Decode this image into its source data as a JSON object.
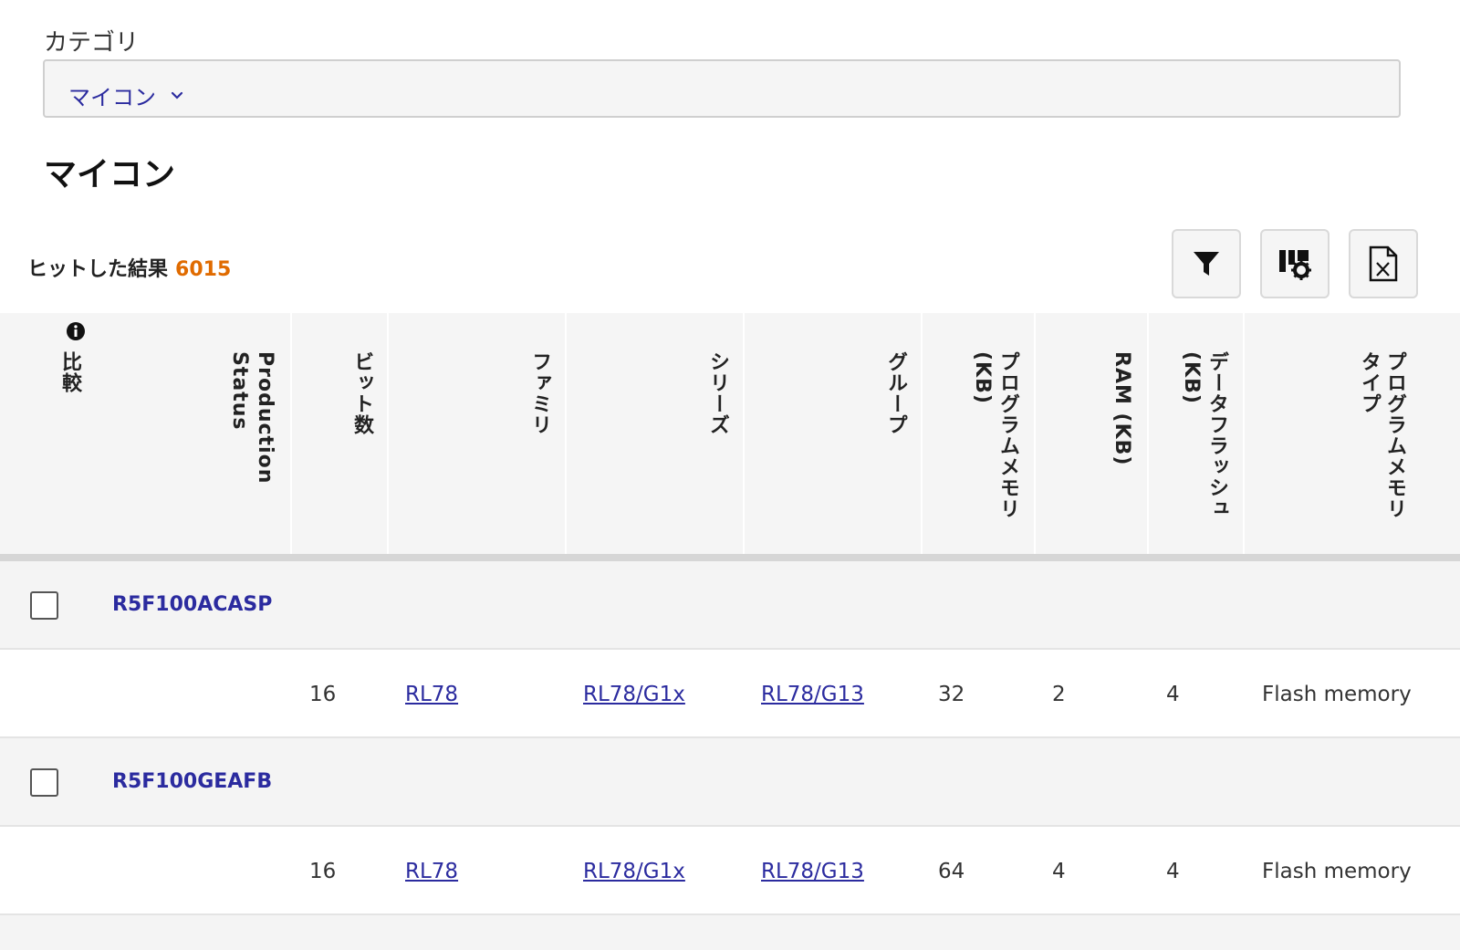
{
  "category": {
    "label": "カテゴリ",
    "selected": "マイコン"
  },
  "page_title": "マイコン",
  "results": {
    "label": "ヒットした結果",
    "count": "6015"
  },
  "columns": {
    "compare": "比較",
    "status": "Production\nStatus",
    "bits": "ビット数",
    "family": "ファミリ",
    "series": "シリーズ",
    "group": "グループ",
    "program_memory": "プログラムメモリ\n(KB)",
    "ram": "RAM (KB)",
    "data_flash": "データフラッシュ\n(KB)",
    "program_memory_type": "プログラムメモリ\nタイプ"
  },
  "products": [
    {
      "part": "R5F100ACASP",
      "bits": "16",
      "family": "RL78",
      "series": "RL78/G1x",
      "group": "RL78/G13",
      "program_memory": "32",
      "ram": "2",
      "data_flash": "4",
      "memory_type": "Flash memory"
    },
    {
      "part": "R5F100GEAFB",
      "bits": "16",
      "family": "RL78",
      "series": "RL78/G1x",
      "group": "RL78/G13",
      "program_memory": "64",
      "ram": "4",
      "data_flash": "4",
      "memory_type": "Flash memory"
    }
  ],
  "colors": {
    "link": "#2b2b9f",
    "count": "#e06b00",
    "header_bg": "#f5f5f5"
  },
  "icons": [
    "chevron-down-icon",
    "filter-icon",
    "column-settings-icon",
    "excel-export-icon",
    "info-icon"
  ]
}
